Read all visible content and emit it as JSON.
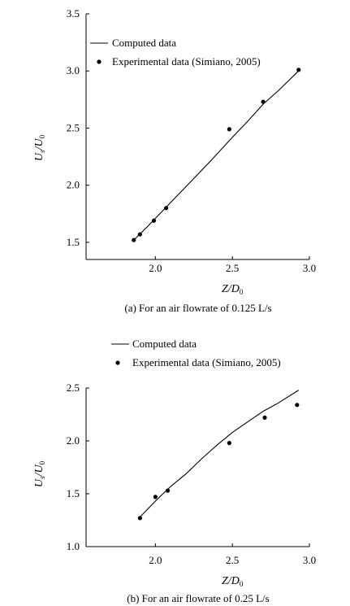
{
  "chart_data": [
    {
      "type": "line",
      "caption": "(a) For an air flowrate of 0.125 L/s",
      "xlabel_main": "Z",
      "xlabel_sep": "/",
      "xlabel_den": "D",
      "xlabel_sub": "0",
      "ylabel_main": "U",
      "ylabel_sub": "s",
      "ylabel_sep": "/",
      "ylabel_den": "U",
      "ylabel_sub2": "0",
      "xlim": [
        1.55,
        3.0
      ],
      "ylim": [
        1.35,
        3.5
      ],
      "xticks": [
        "2.0",
        "2.5",
        "3.0"
      ],
      "xtick_values": [
        2.0,
        2.5,
        3.0
      ],
      "yticks": [
        "1.5",
        "2.0",
        "2.5",
        "3.0",
        "3.5"
      ],
      "ytick_values": [
        1.5,
        2.0,
        2.5,
        3.0,
        3.5
      ],
      "legend_placement": "top-left",
      "series": [
        {
          "name": "Computed data",
          "kind": "line",
          "x": [
            1.86,
            1.95,
            2.05,
            2.2,
            2.35,
            2.5,
            2.6,
            2.7,
            2.8,
            2.93
          ],
          "y": [
            1.52,
            1.64,
            1.78,
            1.99,
            2.2,
            2.42,
            2.56,
            2.71,
            2.83,
            3.0
          ]
        },
        {
          "name": "Experimental data (Simiano, 2005)",
          "kind": "scatter",
          "x": [
            1.86,
            1.9,
            1.99,
            2.07,
            2.48,
            2.7,
            2.93
          ],
          "y": [
            1.52,
            1.57,
            1.69,
            1.8,
            2.49,
            2.73,
            3.01
          ]
        }
      ]
    },
    {
      "type": "line",
      "caption": "(b) For an air flowrate of 0.25 L/s",
      "xlabel_main": "Z",
      "xlabel_sep": "/",
      "xlabel_den": "D",
      "xlabel_sub": "0",
      "ylabel_main": "U",
      "ylabel_sub": "s",
      "ylabel_sep": "/",
      "ylabel_den": "U",
      "ylabel_sub2": "0",
      "xlim": [
        1.55,
        3.0
      ],
      "ylim": [
        1.0,
        2.5
      ],
      "xticks": [
        "2.0",
        "2.5",
        "3.0"
      ],
      "xtick_values": [
        2.0,
        2.5,
        3.0
      ],
      "yticks": [
        "1.0",
        "1.5",
        "2.0",
        "2.5"
      ],
      "ytick_values": [
        1.0,
        1.5,
        2.0,
        2.5
      ],
      "legend_placement": "above",
      "series": [
        {
          "name": "Computed data",
          "kind": "line",
          "x": [
            1.9,
            2.0,
            2.1,
            2.2,
            2.3,
            2.4,
            2.5,
            2.6,
            2.7,
            2.8,
            2.93
          ],
          "y": [
            1.28,
            1.43,
            1.57,
            1.69,
            1.83,
            1.96,
            2.08,
            2.18,
            2.28,
            2.36,
            2.48
          ]
        },
        {
          "name": "Experimental data (Simiano, 2005)",
          "kind": "scatter",
          "x": [
            1.9,
            2.0,
            2.08,
            2.48,
            2.71,
            2.92
          ],
          "y": [
            1.27,
            1.47,
            1.53,
            1.98,
            2.22,
            2.34
          ]
        }
      ]
    }
  ]
}
